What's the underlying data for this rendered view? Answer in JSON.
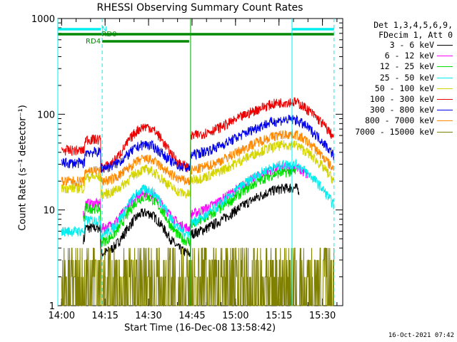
{
  "chart_data": {
    "type": "line",
    "title": "RHESSI Observing Summary Count Rates",
    "xlabel": "Start Time (16-Dec-08 13:58:42)",
    "ylabel": "Count Rate (s⁻¹ detector⁻¹)",
    "yscale": "log",
    "ylim": [
      1,
      1000
    ],
    "xlim": [
      "13:58:42",
      "15:37:00"
    ],
    "xticks": [
      "14:00",
      "14:15",
      "14:30",
      "14:45",
      "15:00",
      "15:15",
      "15:30"
    ],
    "yticks": [
      "1",
      "10",
      "100",
      "1000"
    ],
    "legend_header": [
      "Det 1,3,4,5,6,9,",
      "FDecim 1, Att 0"
    ],
    "legend_placement": "right",
    "series": [
      {
        "name": "3 - 6 keV",
        "color": "#000000",
        "start": "14:07:30",
        "min_val": 3.8,
        "peak_val": 17,
        "day": 5,
        "night": 3.5,
        "saa": 5,
        "stop": "15:22"
      },
      {
        "name": "6 - 12 keV",
        "color": "#ff00ff",
        "start": "14:07:30",
        "min_val": 7,
        "peak_val": 28,
        "day": 9,
        "night": 5,
        "saa": 8,
        "stop": "15:25"
      },
      {
        "name": "12 - 25 keV",
        "color": "#00dd00",
        "start": "14:07:30",
        "min_val": 5,
        "peak_val": 25,
        "day": 8,
        "night": 4,
        "saa": 6,
        "stop": "15:21"
      },
      {
        "name": "25 - 50 keV",
        "color": "#00eeee",
        "start": "14:00:00",
        "min_val": 6,
        "peak_val": 30,
        "day": 6,
        "night": 6,
        "saa": 6,
        "stop": "15:34"
      },
      {
        "name": "50 - 100 keV",
        "color": "#d4d400",
        "start": "14:00:00",
        "min_val": 16,
        "peak_val": 48,
        "day": 17,
        "night": 17,
        "saa": 19,
        "stop": "15:34"
      },
      {
        "name": "100 - 300 keV",
        "color": "#ee0000",
        "start": "14:00:00",
        "min_val": 30,
        "peak_val": 135,
        "day": 42,
        "night": 42,
        "saa": 55,
        "stop": "15:34"
      },
      {
        "name": "300 - 800 keV",
        "color": "#0000ee",
        "start": "14:00:00",
        "min_val": 30,
        "peak_val": 88,
        "day": 31,
        "night": 31,
        "saa": 35,
        "stop": "15:34"
      },
      {
        "name": "800 - 7000 keV",
        "color": "#ff8800",
        "start": "14:00:00",
        "min_val": 22,
        "peak_val": 62,
        "day": 20,
        "night": 20,
        "saa": 24,
        "stop": "15:34"
      },
      {
        "name": "7000 - 15000 keV",
        "color": "#808000",
        "start": "14:00:00",
        "min_val": 1,
        "peak_val": 4,
        "day": 1,
        "night": 1,
        "saa": 1,
        "stop": "15:34"
      }
    ],
    "flags": [
      {
        "name": "N",
        "color": "#00eeee",
        "segments": [
          [
            "13:58:42",
            "14:13:30"
          ],
          [
            "15:19:30",
            "15:34:00"
          ]
        ],
        "level": 1
      },
      {
        "name": "RD0",
        "color": "#008800",
        "segments": [
          [
            "13:58:42",
            "14:44:30"
          ],
          [
            "14:44:30",
            "15:34:00"
          ]
        ],
        "level": 2
      },
      {
        "name": "RD4",
        "color": "#008800",
        "segments": [
          [
            "14:14:00",
            "14:44:00"
          ]
        ],
        "level": 3
      }
    ],
    "vlines_cyan_dashed": [
      "14:14:00",
      "15:34:00"
    ],
    "vlines_cyan_solid": [
      "13:58:42",
      "15:19:30"
    ],
    "vlines_green_solid": [
      "14:44:30"
    ]
  },
  "timestamp": "16-Oct-2021 07:42"
}
